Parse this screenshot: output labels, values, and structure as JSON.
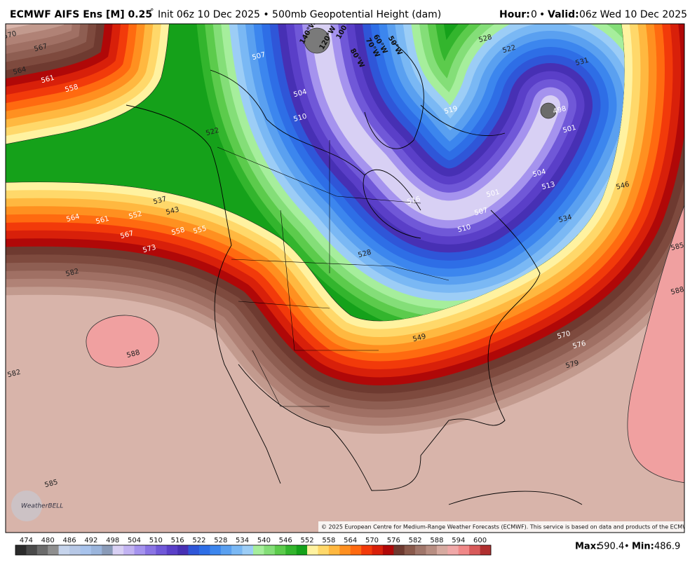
{
  "header": {
    "title": "ECMWF AIFS Ens [M] 0.25",
    "degree": "°",
    "subtitle": "Init 06z 10 Dec 2025 • 500mb Geopotential Height (dam)",
    "hour_label": "Hour:",
    "hour": "0",
    "sep": "•",
    "valid_label": "Valid:",
    "valid": "06z Wed 10 Dec 2025"
  },
  "map": {
    "longitudes": [
      "140°W",
      "120°W",
      "100°W",
      "80°W",
      "70°W",
      "60°W",
      "50°W"
    ],
    "contour_labels": [
      "570",
      "567",
      "564",
      "561",
      "558",
      "537",
      "543",
      "552",
      "564",
      "561",
      "558",
      "555",
      "567",
      "573",
      "582",
      "588",
      "582",
      "585",
      "507",
      "504",
      "510",
      "516",
      "510",
      "507",
      "501",
      "504",
      "513",
      "501",
      "498",
      "519",
      "522",
      "528",
      "531",
      "534",
      "546",
      "549",
      "570",
      "576",
      "579",
      "585",
      "588",
      "528",
      "522"
    ],
    "logo": "WeatherBELL",
    "copyright": "© 2025 European Centre for Medium-Range Weather Forecasts (ECMWF). This service is based on data and products of the ECMWF."
  },
  "colorbar": {
    "labels": [
      474,
      480,
      486,
      492,
      498,
      504,
      510,
      516,
      522,
      528,
      534,
      540,
      546,
      552,
      558,
      564,
      570,
      576,
      582,
      588,
      594,
      600
    ],
    "colors": [
      "#2b2b2b",
      "#4a4a4a",
      "#6b6b6b",
      "#8f8f8f",
      "#c6d4ec",
      "#b7c8e6",
      "#a8c3ec",
      "#9bb5dc",
      "#8a9bb8",
      "#d8d0f4",
      "#c2b3f2",
      "#a593ee",
      "#8a74e4",
      "#7058d8",
      "#5a3fc8",
      "#4730b4",
      "#2f56d8",
      "#2e6ee6",
      "#3c86ee",
      "#5aa0f0",
      "#7ab8f4",
      "#9ccdf6",
      "#a6ee9c",
      "#84de78",
      "#5ccb4c",
      "#33b52d",
      "#15a11a",
      "#fff2a0",
      "#ffd86a",
      "#ffb840",
      "#ff9020",
      "#ff6a10",
      "#f23a0a",
      "#d8200a",
      "#b00808",
      "#6e3a30",
      "#8a5a4c",
      "#a0766a",
      "#b88e82",
      "#d6aaa0",
      "#f0a8a8",
      "#f08888",
      "#d85a5a",
      "#b03030"
    ]
  },
  "footer": {
    "max_label": "Max:",
    "max": "590.4",
    "sep": "•",
    "min_label": "Min:",
    "min": "486.9"
  }
}
